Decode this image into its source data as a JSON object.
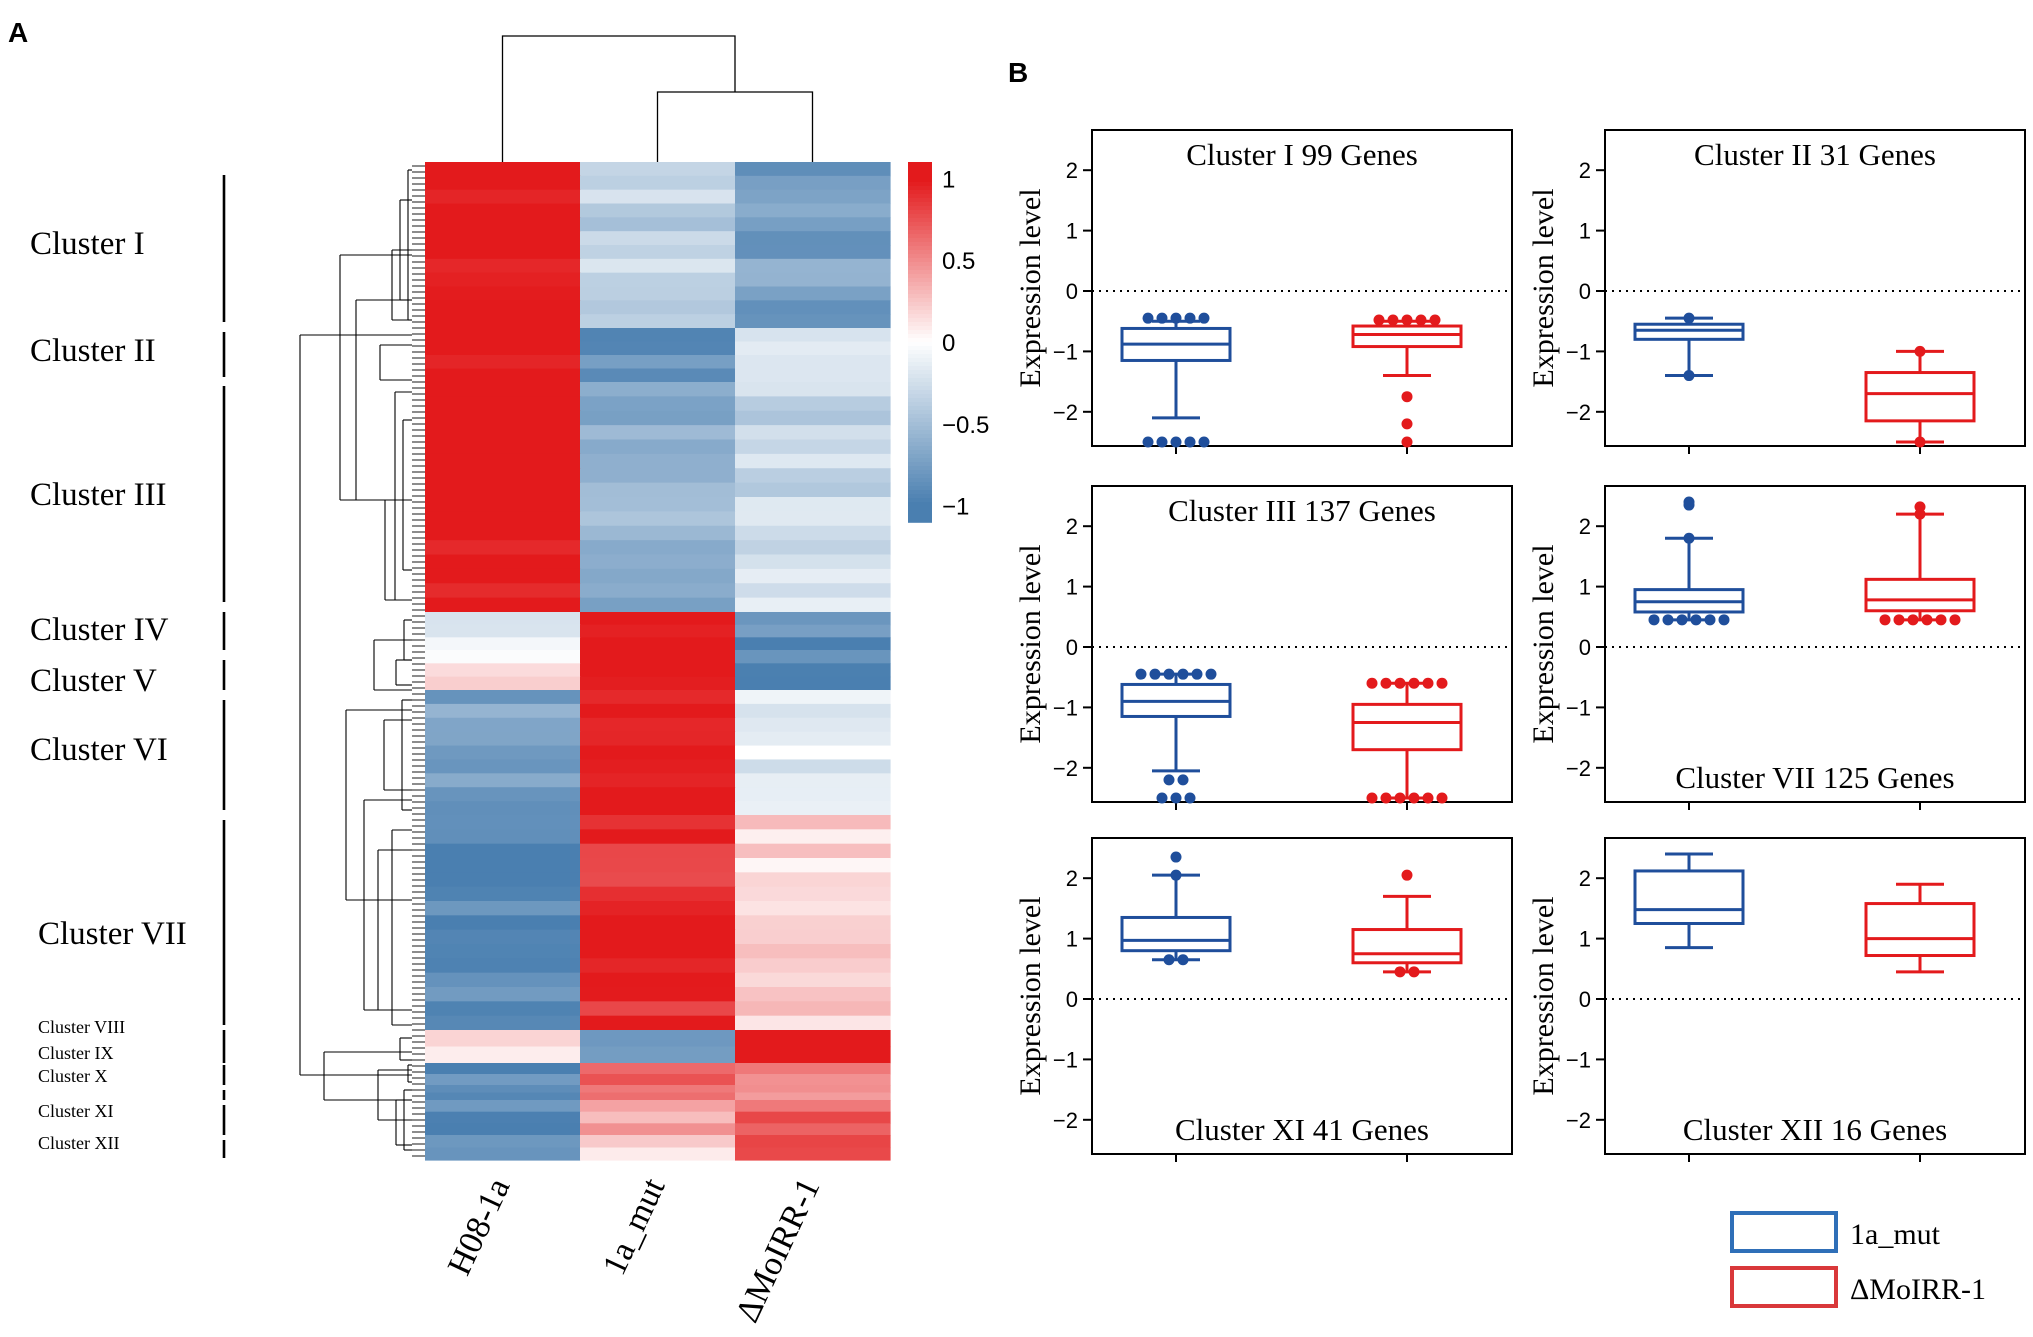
{
  "panels": {
    "a_label": "A",
    "b_label": "B"
  },
  "colors": {
    "high": "#e31a1c",
    "mid": "#ffffff",
    "low": "#4a7fb0",
    "series_1a_mut": "#1f4e9b",
    "series_dmoirr1": "#e31a1c",
    "legend_1a_mut": "#2f6fb8",
    "legend_dmoirr1": "#d9383a"
  },
  "chart_data": [
    {
      "type": "heatmap",
      "panel": "A",
      "columns": [
        "H08-1a",
        "1a_mut",
        "ΔMoIRR-1"
      ],
      "colorbar": {
        "ticks": [
          1,
          0.5,
          0,
          -0.5,
          -1
        ],
        "tick_labels": [
          "1",
          "0.5",
          "0",
          "−0.5",
          "−1"
        ],
        "range": [
          -1.1,
          1.1
        ]
      },
      "clusters": [
        {
          "label": "Cluster I",
          "size": "large",
          "values": [
            1.1,
            -0.35,
            -0.75
          ]
        },
        {
          "label": "Cluster II",
          "size": "large",
          "values": [
            1.1,
            -0.9,
            -0.1
          ]
        },
        {
          "label": "Cluster III",
          "size": "large",
          "values": [
            1.1,
            -0.6,
            -0.3
          ]
        },
        {
          "label": "Cluster IV",
          "size": "large",
          "values": [
            -0.2,
            1.1,
            -0.85
          ]
        },
        {
          "label": "Cluster V",
          "size": "large",
          "values": [
            0.1,
            1.1,
            -0.9
          ]
        },
        {
          "label": "Cluster VI",
          "size": "large",
          "values": [
            -0.7,
            1.1,
            -0.1
          ]
        },
        {
          "label": "Cluster VII",
          "size": "large",
          "values": [
            -0.95,
            0.95,
            0.15
          ]
        },
        {
          "label": "Cluster VIII",
          "size": "small",
          "values": [
            0.1,
            -0.9,
            1.1
          ]
        },
        {
          "label": "Cluster IX",
          "size": "small",
          "values": [
            -0.95,
            0.7,
            0.6
          ]
        },
        {
          "label": "Cluster X",
          "size": "small",
          "values": [
            -0.95,
            0.7,
            0.6
          ]
        },
        {
          "label": "Cluster XI",
          "size": "small",
          "values": [
            -0.95,
            0.4,
            0.75
          ]
        },
        {
          "label": "Cluster XII",
          "size": "small",
          "values": [
            -0.95,
            0.2,
            0.85
          ]
        }
      ]
    },
    {
      "type": "box",
      "panel": "B",
      "ylabel": "Expression level",
      "ylim": [
        -2.5,
        2.5
      ],
      "yticks": [
        2,
        1,
        0,
        -1,
        -2
      ],
      "reference_line": 0,
      "series_names": [
        "1a_mut",
        "ΔMoIRR-1"
      ],
      "plots": [
        {
          "title": "Cluster I  99 Genes",
          "title_pos": "top",
          "boxes": [
            {
              "series": "1a_mut",
              "whisker_low": -2.1,
              "q1": -1.15,
              "median": -0.88,
              "q3": -0.62,
              "whisker_high": -0.5,
              "outliers": [
                -0.45,
                -0.45,
                -0.45,
                -0.45,
                -0.45,
                -2.5,
                -2.5,
                -2.5,
                -2.5,
                -2.5
              ]
            },
            {
              "series": "ΔMoIRR-1",
              "whisker_low": -1.4,
              "q1": -0.92,
              "median": -0.72,
              "q3": -0.58,
              "whisker_high": -0.5,
              "outliers": [
                -0.48,
                -0.48,
                -0.48,
                -0.48,
                -0.48,
                -1.75,
                -2.2,
                -2.5
              ]
            }
          ]
        },
        {
          "title": "Cluster II  31 Genes",
          "title_pos": "top",
          "boxes": [
            {
              "series": "1a_mut",
              "whisker_low": -1.4,
              "q1": -0.8,
              "median": -0.65,
              "q3": -0.55,
              "whisker_high": -0.45,
              "outliers": [
                -0.45,
                -1.4
              ]
            },
            {
              "series": "ΔMoIRR-1",
              "whisker_low": -2.5,
              "q1": -2.15,
              "median": -1.7,
              "q3": -1.35,
              "whisker_high": -1.0,
              "outliers": [
                -1.0,
                -2.5
              ]
            }
          ]
        },
        {
          "title": "Cluster III  137 Genes",
          "title_pos": "top",
          "boxes": [
            {
              "series": "1a_mut",
              "whisker_low": -2.05,
              "q1": -1.15,
              "median": -0.9,
              "q3": -0.62,
              "whisker_high": -0.45,
              "outliers": [
                -0.45,
                -0.45,
                -0.45,
                -0.45,
                -0.45,
                -0.45,
                -2.2,
                -2.2,
                -2.5,
                -2.5,
                -2.5
              ]
            },
            {
              "series": "ΔMoIRR-1",
              "whisker_low": -2.5,
              "q1": -1.7,
              "median": -1.25,
              "q3": -0.95,
              "whisker_high": -0.6,
              "outliers": [
                -0.6,
                -0.6,
                -0.6,
                -0.6,
                -0.6,
                -0.6,
                -2.5,
                -2.5,
                -2.5,
                -2.5,
                -2.5,
                -2.5
              ]
            }
          ]
        },
        {
          "title": "Cluster VII  125 Genes",
          "title_pos": "bottom",
          "boxes": [
            {
              "series": "1a_mut",
              "whisker_low": 0.45,
              "q1": 0.58,
              "median": 0.75,
              "q3": 0.95,
              "whisker_high": 1.8,
              "outliers": [
                0.45,
                0.45,
                0.45,
                0.45,
                0.45,
                0.45,
                1.8,
                2.35,
                2.4
              ]
            },
            {
              "series": "ΔMoIRR-1",
              "whisker_low": 0.45,
              "q1": 0.6,
              "median": 0.78,
              "q3": 1.12,
              "whisker_high": 2.2,
              "outliers": [
                0.45,
                0.45,
                0.45,
                0.45,
                0.45,
                0.45,
                2.2,
                2.32
              ]
            }
          ]
        },
        {
          "title": "Cluster XI  41 Genes",
          "title_pos": "bottom",
          "boxes": [
            {
              "series": "1a_mut",
              "whisker_low": 0.65,
              "q1": 0.8,
              "median": 0.97,
              "q3": 1.35,
              "whisker_high": 2.05,
              "outliers": [
                0.65,
                0.65,
                2.05,
                2.35
              ]
            },
            {
              "series": "ΔMoIRR-1",
              "whisker_low": 0.45,
              "q1": 0.6,
              "median": 0.75,
              "q3": 1.15,
              "whisker_high": 1.7,
              "outliers": [
                0.45,
                0.45,
                2.05
              ]
            }
          ]
        },
        {
          "title": "Cluster XII  16 Genes",
          "title_pos": "bottom",
          "boxes": [
            {
              "series": "1a_mut",
              "whisker_low": 0.85,
              "q1": 1.25,
              "median": 1.48,
              "q3": 2.12,
              "whisker_high": 2.4,
              "outliers": []
            },
            {
              "series": "ΔMoIRR-1",
              "whisker_low": 0.45,
              "q1": 0.72,
              "median": 1.0,
              "q3": 1.58,
              "whisker_high": 1.9,
              "outliers": []
            }
          ]
        }
      ]
    }
  ],
  "legend": {
    "items": [
      "1a_mut",
      "ΔMoIRR-1"
    ]
  }
}
